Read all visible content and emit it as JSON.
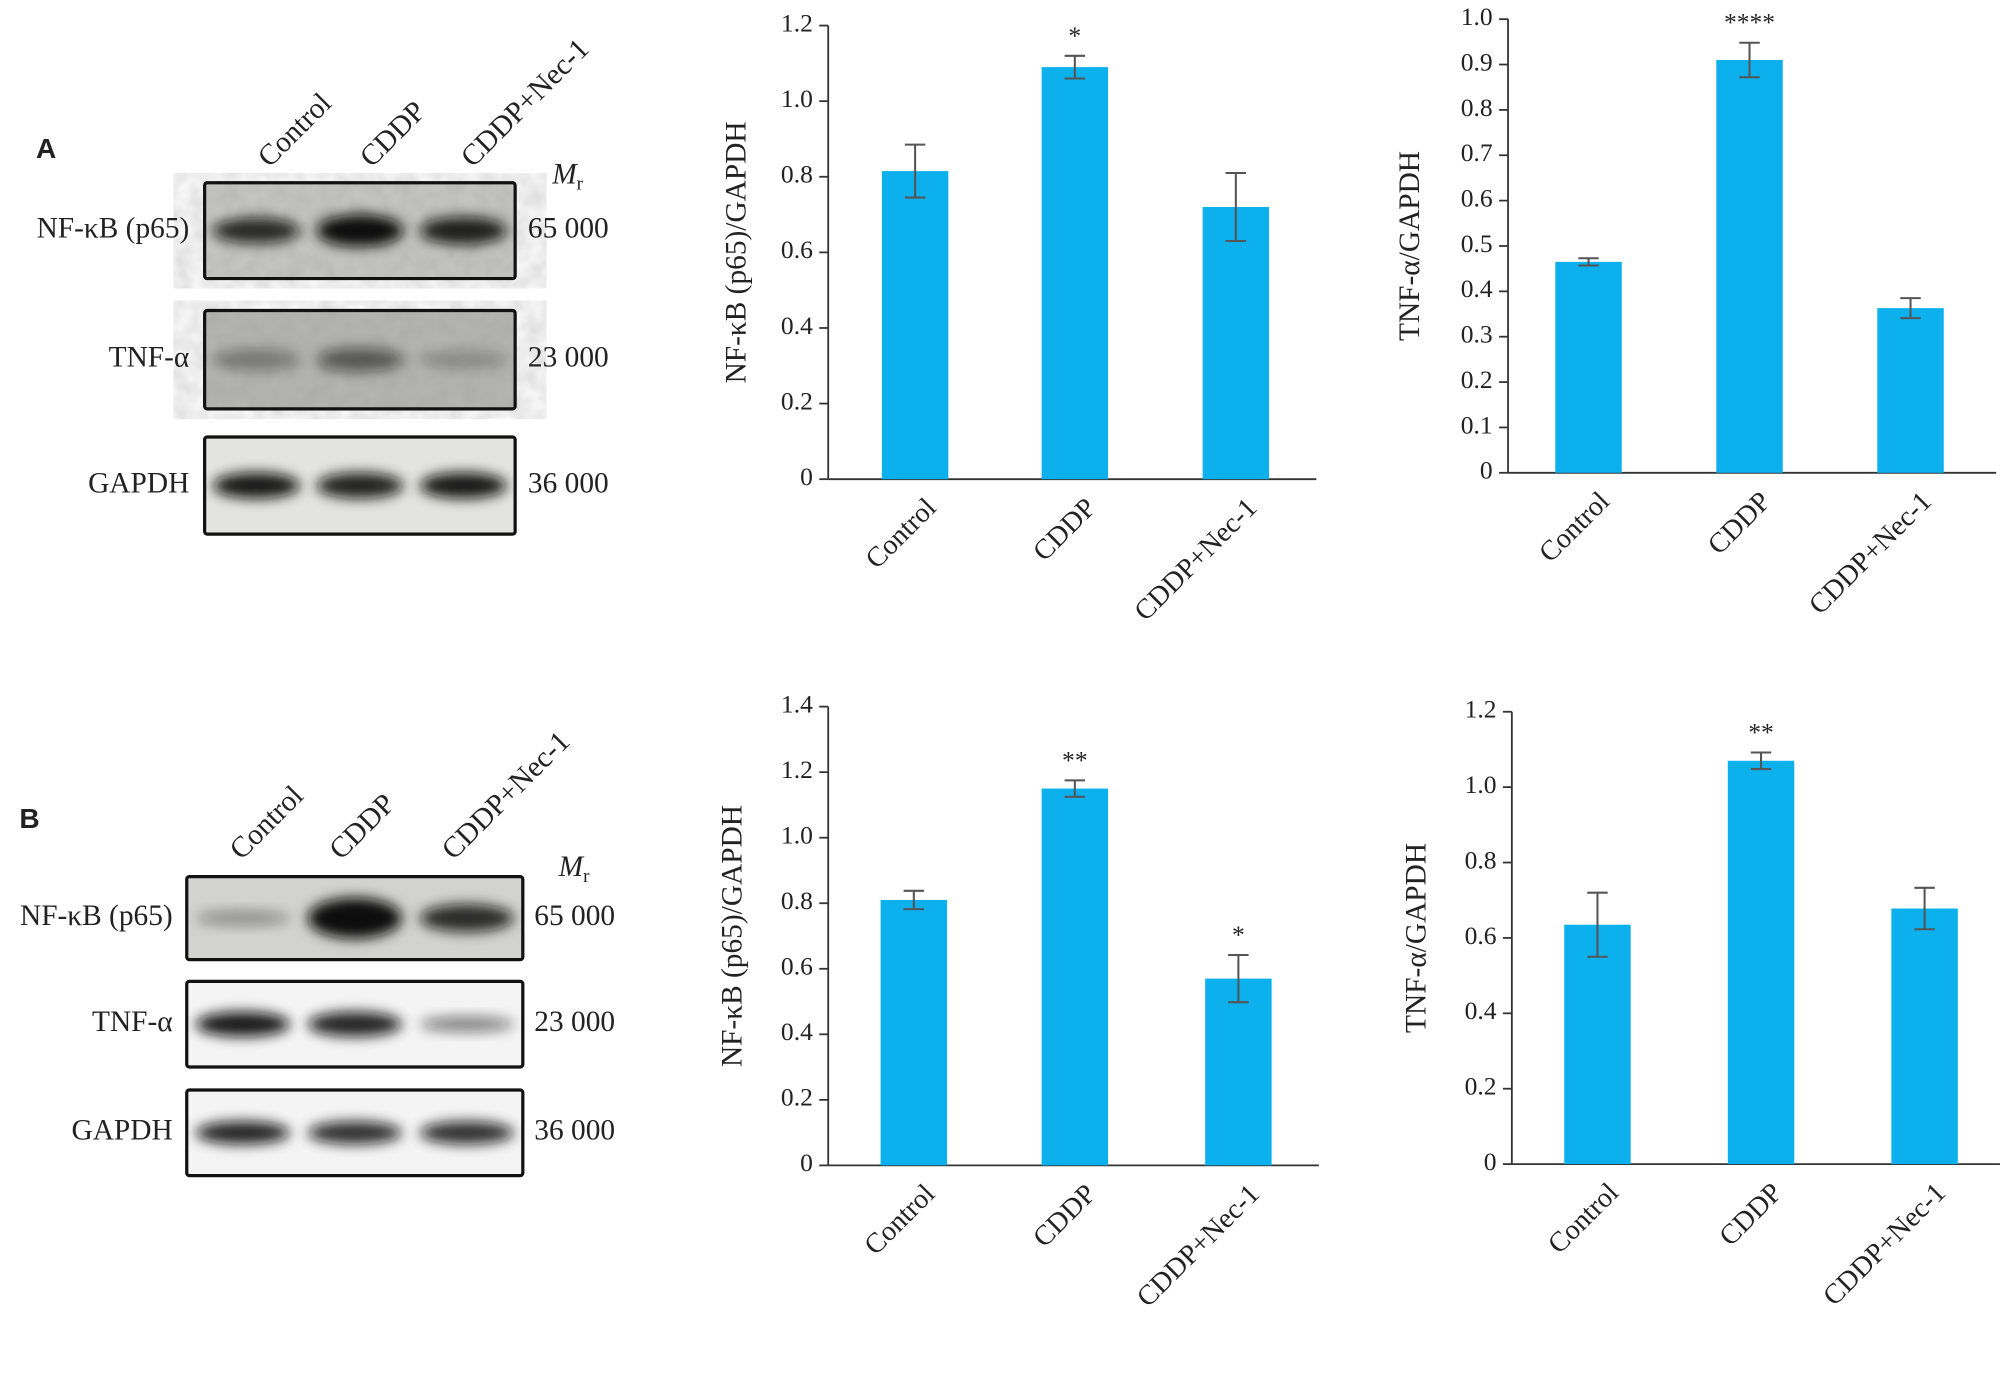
{
  "blots": [
    {
      "label": "A",
      "lanes": [
        "Control",
        "CDDP",
        "CDDP+Nec-1"
      ],
      "mr_symbol": "M",
      "mr_subscript": "r",
      "rows": [
        {
          "name": "NF-κB (p65)",
          "mr": "65 000"
        },
        {
          "name": "TNF-α",
          "mr": "23 000"
        },
        {
          "name": "GAPDH",
          "mr": "36 000"
        }
      ]
    },
    {
      "label": "B",
      "lanes": [
        "Control",
        "CDDP",
        "CDDP+Nec-1"
      ],
      "mr_symbol": "M",
      "mr_subscript": "r",
      "rows": [
        {
          "name": "NF-κB (p65)",
          "mr": "65 000"
        },
        {
          "name": "TNF-α",
          "mr": "23 000"
        },
        {
          "name": "GAPDH",
          "mr": "36 000"
        }
      ]
    }
  ],
  "chart_data": [
    {
      "type": "bar",
      "ylabel": "NF-κB (p65)/GAPDH",
      "categories": [
        "Control",
        "CDDP",
        "CDDP+Nec-1"
      ],
      "values": [
        0.815,
        1.09,
        0.72
      ],
      "errors": [
        0.07,
        0.03,
        0.09
      ],
      "annotations": [
        null,
        "*",
        null
      ],
      "color": "#0bb0ec",
      "ylim": [
        0,
        1.2
      ],
      "yticks": [
        0,
        0.2,
        0.4,
        0.6,
        0.8,
        {
          "value": 1,
          "label": "1.0"
        },
        1.2
      ]
    },
    {
      "type": "bar",
      "ylabel": "TNF-α/GAPDH",
      "categories": [
        "Control",
        "CDDP",
        "CDDP+Nec-1"
      ],
      "values": [
        0.465,
        0.91,
        0.363
      ],
      "errors": [
        0.008,
        0.038,
        0.022
      ],
      "annotations": [
        null,
        "****",
        null
      ],
      "color": "#0bb0ec",
      "ylim": [
        0,
        1
      ],
      "yticks": [
        0,
        0.1,
        0.2,
        0.3,
        0.4,
        0.5,
        0.6,
        0.7,
        0.8,
        0.9,
        {
          "value": 1,
          "label": "1.0"
        }
      ]
    },
    {
      "type": "bar",
      "ylabel": "NF-κB (p65)/GAPDH",
      "categories": [
        "Control",
        "CDDP",
        "CDDP+Nec-1"
      ],
      "values": [
        0.81,
        1.15,
        0.57
      ],
      "errors": [
        0.028,
        0.025,
        0.072
      ],
      "annotations": [
        null,
        "**",
        "*"
      ],
      "color": "#0bb0ec",
      "ylim": [
        0,
        1.4
      ],
      "yticks": [
        0,
        0.2,
        0.4,
        0.6,
        0.8,
        {
          "value": 1,
          "label": "1.0"
        },
        1.2,
        1.4
      ]
    },
    {
      "type": "bar",
      "ylabel": "TNF-α/GAPDH",
      "categories": [
        "Control",
        "CDDP",
        "CDDP+Nec-1"
      ],
      "values": [
        0.635,
        1.07,
        0.678
      ],
      "errors": [
        0.085,
        0.022,
        0.055
      ],
      "annotations": [
        null,
        "**",
        null
      ],
      "color": "#0bb0ec",
      "ylim": [
        0,
        1.2
      ],
      "yticks": [
        0,
        0.2,
        0.4,
        0.6,
        0.8,
        {
          "value": 1,
          "label": "1.0"
        },
        1.2
      ]
    }
  ]
}
